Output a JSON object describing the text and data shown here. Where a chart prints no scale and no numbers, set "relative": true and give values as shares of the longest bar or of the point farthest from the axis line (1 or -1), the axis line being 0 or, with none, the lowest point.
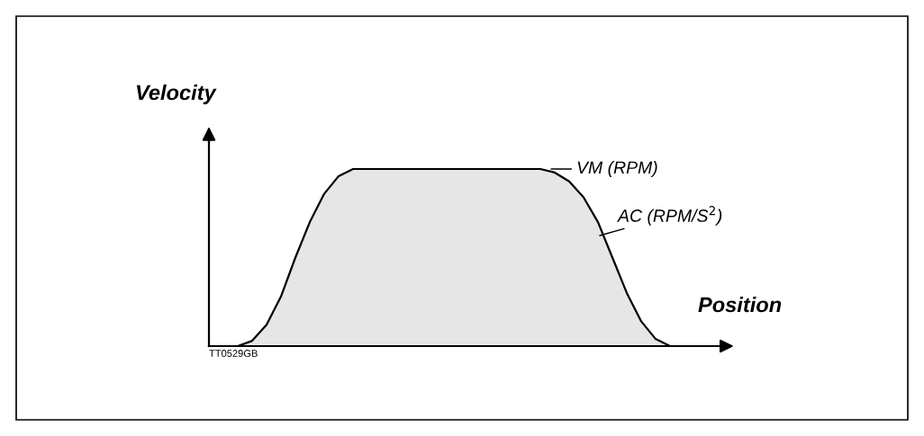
{
  "chart_data": {
    "type": "area",
    "relative": true,
    "xlabel": "Position",
    "ylabel": "Velocity",
    "categories": [
      null,
      null,
      null,
      null,
      null,
      null,
      null,
      null,
      null,
      null,
      null,
      null,
      null,
      null,
      null,
      null,
      null,
      null,
      null,
      null,
      null,
      null,
      null,
      null,
      null,
      null,
      null,
      null,
      null,
      null,
      null,
      null,
      null,
      null,
      null,
      null
    ],
    "series": [
      {
        "color": "#e6e6e6",
        "values": [
          0,
          0,
          0,
          0.03,
          0.12,
          0.28,
          0.5,
          0.7,
          0.86,
          0.96,
          1,
          1,
          1,
          1,
          1,
          1,
          1,
          1,
          1,
          1,
          1,
          1,
          1,
          1,
          0.98,
          0.93,
          0.84,
          0.7,
          0.5,
          0.3,
          0.14,
          0.04,
          0,
          0,
          0,
          0
        ]
      }
    ],
    "annotations": [
      "VM (RPM)",
      "AC (RPM/S$^{2}$)",
      "TT0529GB"
    ],
    "legend": false
  }
}
